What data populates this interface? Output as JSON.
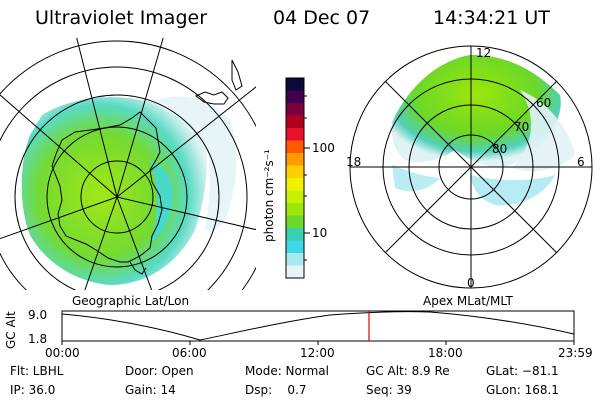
{
  "header": {
    "instrument": "Ultraviolet Imager",
    "date": "04 Dec 07",
    "time": "14:34:21 UT"
  },
  "colorbar": {
    "label": "photon cm⁻²s⁻¹",
    "ticks": [
      "100",
      "10"
    ],
    "colors": [
      "#0a0a3a",
      "#400050",
      "#7a0040",
      "#b0001a",
      "#e8102a",
      "#ff5a00",
      "#ff9a00",
      "#ffd000",
      "#f0f000",
      "#c8f000",
      "#9ce60a",
      "#6cd828",
      "#38d0b0",
      "#40d8e8",
      "#a8e8f0",
      "#e8f4f8"
    ]
  },
  "left_map": {
    "label": "Geographic Lat/Lon"
  },
  "right_map": {
    "label": "Apex MLat/MLT",
    "mlt_labels": {
      "top": "12",
      "left": "18",
      "right": "6",
      "bottom": "0"
    },
    "lat_labels": [
      "60",
      "70",
      "80"
    ]
  },
  "altitude_plot": {
    "ylabel": "GC Alt",
    "yticks": [
      "9.0",
      "1.8"
    ],
    "xticks": [
      "00:00",
      "06:00",
      "12:00",
      "18:00",
      "23:59"
    ]
  },
  "status": {
    "filter": "Flt: LBHL",
    "ip": "IP: 36.0",
    "door": "Door: Open",
    "gain": "Gain: 14",
    "mode": "Mode: Normal",
    "dsp": "Dsp:    0.7",
    "gc_alt": "GC Alt: 8.9 Re",
    "seq": "Seq: 39",
    "glat": "GLat: −81.1",
    "glon": "GLon: 168.1"
  }
}
